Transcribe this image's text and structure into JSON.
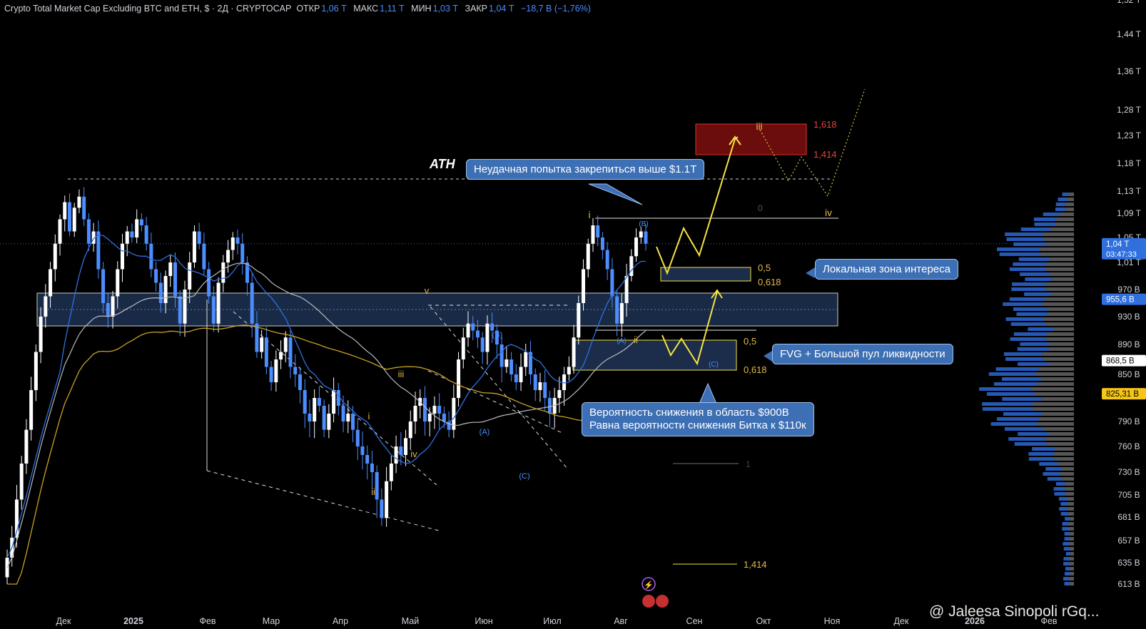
{
  "header": {
    "title": "Crypto Total Market Cap Excluding BTC and ETH, $ · 2Д · CRYPTOCAP",
    "open_label": "ОТКР",
    "open_value": "1,06 T",
    "high_label": "МАКС",
    "high_value": "1,11 T",
    "low_label": "МИН",
    "low_value": "1,03 T",
    "close_label": "ЗАКР",
    "close_value": "1,04 T",
    "change": "−18,7 B (−1,76%)"
  },
  "callouts": {
    "failed_attempt": "Неудачная попытка закрепиться выше $1.1T",
    "local_zone": "Локальная зона интереса",
    "fvg": "FVG + Большой пул ликвидности",
    "probability_line1": "Вероятность снижения в область $900B",
    "probability_line2": "Равна вероятности снижения Битка к $110к"
  },
  "ath_label": "ATH",
  "watermark": "@ Jaleesa Sinopoli rGq...",
  "colors": {
    "background": "#000000",
    "candle_up": "#ffffff",
    "candle_down": "#4c8dff",
    "ma_blue": "#2f6fde",
    "ma_white": "#bcbcbc",
    "ma_yellow": "#c9a227",
    "projection": "#f5e342",
    "target_box": "#6b0d0d",
    "zone_box": "#1b2d4a"
  },
  "chart_data": {
    "type": "candlestick",
    "title": "Crypto Total Market Cap Excluding BTC and ETH, $ · 2Д · CRYPTOCAP",
    "x_ticks": [
      "Дек",
      "2025",
      "Фев",
      "Мар",
      "Апр",
      "Май",
      "Июн",
      "Июл",
      "Авг",
      "Сен",
      "Окт",
      "Ноя",
      "Дек",
      "2026",
      "Фев"
    ],
    "y_ticks": [
      "1,52 T",
      "1,44 T",
      "1,36 T",
      "1,28 T",
      "1,23 T",
      "1,18 T",
      "1,13 T",
      "1,09 T",
      "1,05 T",
      "1,01 T",
      "970 B",
      "930 B",
      "890 B",
      "850 B",
      "790 B",
      "760 B",
      "730 B",
      "705 B",
      "681 B",
      "657 B",
      "635 B",
      "613 B"
    ],
    "y_tick_values": [
      1520,
      1440,
      1360,
      1280,
      1230,
      1180,
      1130,
      1090,
      1050,
      1010,
      970,
      930,
      890,
      850,
      790,
      760,
      730,
      705,
      681,
      657,
      635,
      613
    ],
    "price_tags": [
      {
        "text": "1,04 T",
        "sub": "03:47:33",
        "value": 1040,
        "style": "current"
      },
      {
        "text": "955,6 B",
        "value": 955.6,
        "style": "blue"
      },
      {
        "text": "868,5 B",
        "value": 868.5,
        "style": "white"
      },
      {
        "text": "825,31 B",
        "value": 825.31,
        "style": "yellow"
      }
    ],
    "candles_close": [
      640,
      660,
      700,
      740,
      780,
      830,
      880,
      930,
      960,
      1000,
      1040,
      1080,
      1110,
      1060,
      1100,
      1120,
      1080,
      1040,
      1060,
      1000,
      950,
      930,
      960,
      1000,
      1040,
      1060,
      1050,
      1080,
      1070,
      1040,
      1000,
      980,
      950,
      990,
      1010,
      960,
      920,
      970,
      1010,
      1060,
      1040,
      1000,
      960,
      920,
      980,
      1010,
      1030,
      1050,
      1040,
      1010,
      980,
      920,
      880,
      900,
      860,
      840,
      870,
      880,
      900,
      860,
      850,
      830,
      800,
      790,
      820,
      810,
      780,
      800,
      830,
      810,
      790,
      800,
      780,
      760,
      750,
      740,
      730,
      700,
      680,
      720,
      740,
      760,
      750,
      770,
      790,
      810,
      820,
      790,
      800,
      810,
      800,
      790,
      780,
      820,
      870,
      900,
      920,
      910,
      900,
      880,
      920,
      910,
      890,
      860,
      870,
      850,
      840,
      860,
      880,
      850,
      830,
      840,
      820,
      800,
      820,
      830,
      850,
      860,
      900,
      950,
      1000,
      1040,
      1070,
      1050,
      1030,
      1000,
      960,
      920,
      950,
      990,
      1020,
      1050,
      1060,
      1040
    ]
  },
  "chart_labels": {
    "fib_0": "0",
    "fib_05_upper": "0,5",
    "fib_0618_upper": "0,618",
    "fib_05_lower": "0,5",
    "fib_0618_lower": "0,618",
    "fib_1": "1",
    "fib_1414_low": "1,414",
    "target_1618": "1,618",
    "target_1414": "1,414",
    "wave_i_left": "i",
    "wave_ii_left": "ii",
    "wave_iii_left": "iii",
    "wave_iv_left": "iv",
    "wave_v_left": "v",
    "wave_A": "(A)",
    "wave_B": "(B)",
    "wave_C": "(C)",
    "wave_i_right": "i",
    "wave_ii_right": "ii",
    "wave_A_right": "(A)",
    "wave_B_right": "(B)",
    "wave_C_proj": "(C)",
    "wave_iii_proj": "iii",
    "wave_iv_proj": "iv"
  }
}
